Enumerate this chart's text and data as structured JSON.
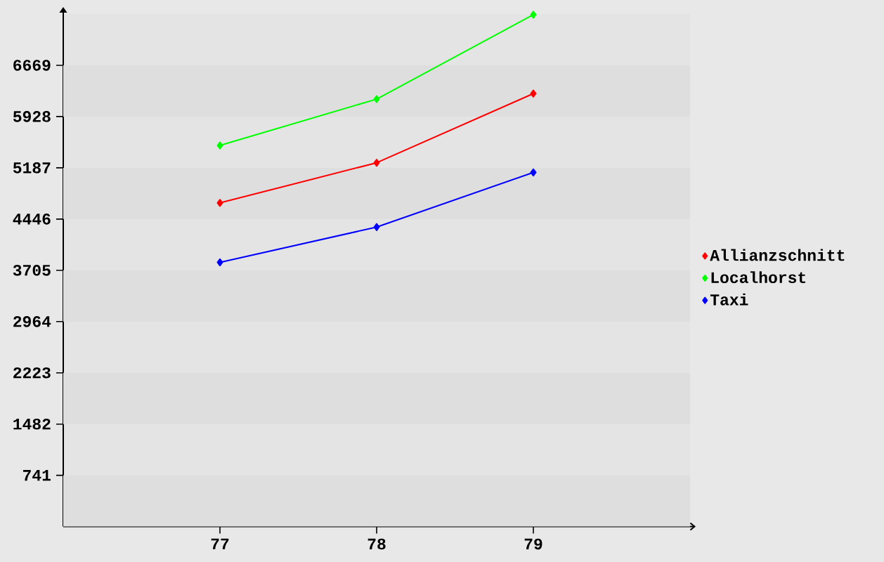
{
  "chart_data": {
    "type": "line",
    "categories": [
      "77",
      "78",
      "79"
    ],
    "series": [
      {
        "name": "Allianzschnitt",
        "color": "#ff0000",
        "values": [
          4680,
          5260,
          6260
        ]
      },
      {
        "name": "Localhorst",
        "color": "#00ff00",
        "values": [
          5510,
          6180,
          7400
        ]
      },
      {
        "name": "Taxi",
        "color": "#0000ff",
        "values": [
          3820,
          4330,
          5120
        ]
      }
    ],
    "ylim": [
      0,
      7410
    ],
    "yticks": [
      741,
      1482,
      2223,
      2964,
      3705,
      4446,
      5187,
      5928,
      6669
    ],
    "bands": [
      {
        "axis": "y",
        "from": 0,
        "to": 741,
        "color": "#dedede"
      },
      {
        "axis": "y",
        "from": 1482,
        "to": 2223,
        "color": "#dedede"
      },
      {
        "axis": "y",
        "from": 2964,
        "to": 3705,
        "color": "#dedede"
      },
      {
        "axis": "y",
        "from": 4446,
        "to": 5187,
        "color": "#dedede"
      },
      {
        "axis": "y",
        "from": 5928,
        "to": 6669,
        "color": "#dedede"
      }
    ],
    "legend": "right",
    "marker": "diamond"
  }
}
